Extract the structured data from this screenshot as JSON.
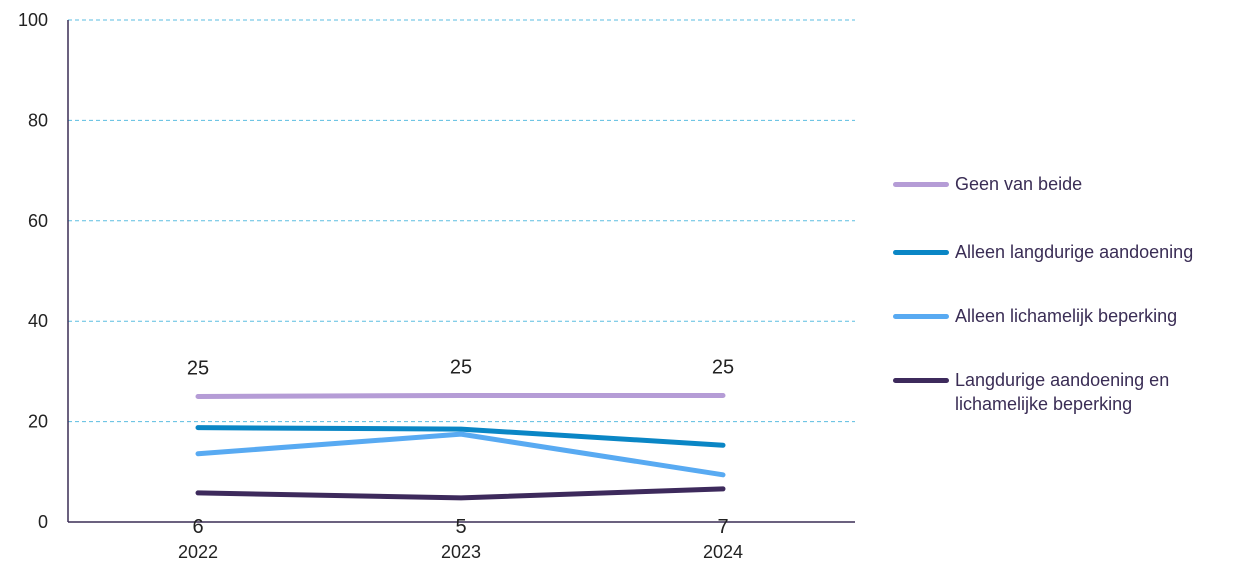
{
  "chart_data": {
    "type": "line",
    "title": "",
    "xlabel": "",
    "ylabel": "",
    "categories": [
      "2022",
      "2023",
      "2024"
    ],
    "ylim": [
      0,
      100
    ],
    "yticks": [
      0,
      20,
      40,
      60,
      80,
      100
    ],
    "grid": true,
    "legend_position": "right",
    "series": [
      {
        "name": "Geen van beide",
        "color": "#b59cd6",
        "values": [
          25,
          25.2,
          25.2
        ],
        "labels": [
          "25",
          "25",
          "25"
        ]
      },
      {
        "name": "Alleen langdurige aandoening",
        "color": "#0a86c5",
        "values": [
          18.8,
          18.5,
          15.3
        ],
        "labels": []
      },
      {
        "name": "Alleen lichamelijk beperking",
        "color": "#58aaf2",
        "values": [
          13.6,
          17.5,
          9.4
        ],
        "labels": []
      },
      {
        "name": "Langdurige aandoening en lichamelijke beperking",
        "color": "#3d2a5c",
        "values": [
          5.8,
          4.8,
          6.6
        ],
        "labels": [
          "6",
          "5",
          "7"
        ]
      }
    ],
    "legend_lines": [
      [
        "Geen van beide"
      ],
      [
        "Alleen langdurige aandoening"
      ],
      [
        "Alleen lichamelijk beperking"
      ],
      [
        "Langdurige aandoening en",
        "lichamelijke beperking"
      ]
    ]
  }
}
